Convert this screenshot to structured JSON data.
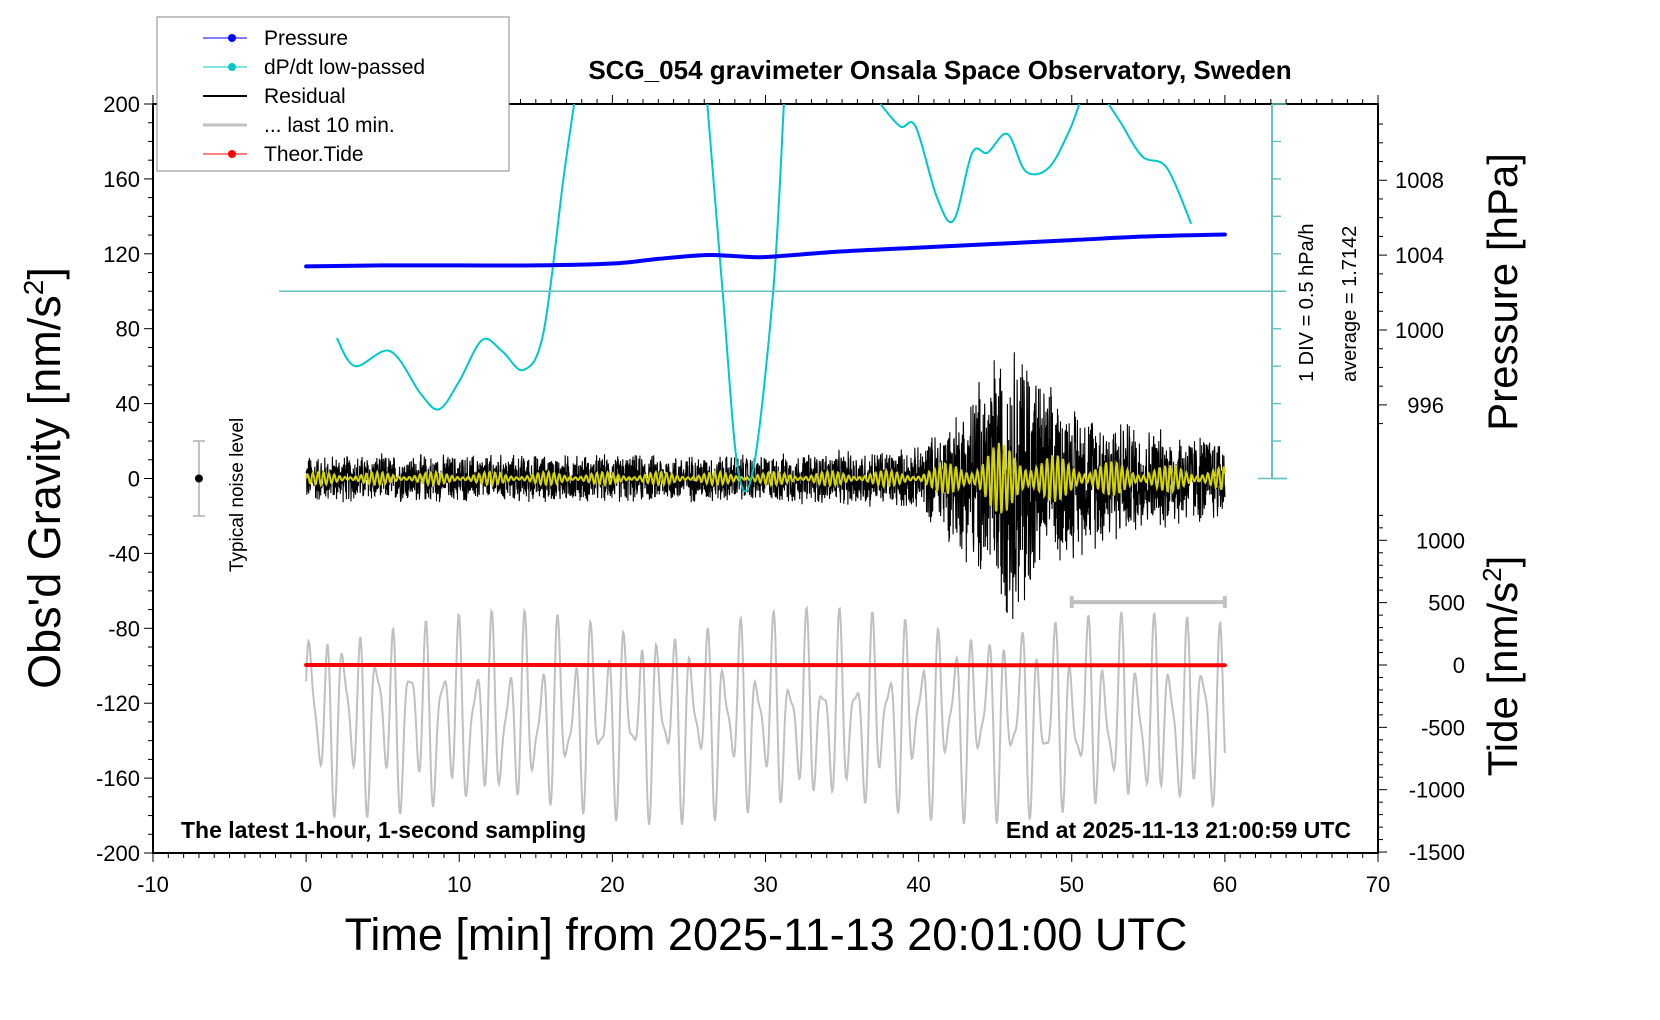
{
  "chart_data": {
    "type": "line",
    "title": "SCG_054 gravimeter Onsala Space Observatory, Sweden",
    "xlabel": "Time [min] from 2025-11-13 20:01:00 UTC",
    "ylabel_left": "Obs'd Gravity [nm/s",
    "ylabel_left_sup": "2",
    "ylabel_left_end": "]",
    "ylabel_right_pressure": "Pressure [hPa]",
    "ylabel_right_tide": "Tide [nm/s",
    "ylabel_right_tide_sup": "2",
    "ylabel_right_tide_end": "]",
    "xlim": [
      -10,
      70
    ],
    "ylim_left": [
      -200,
      200
    ],
    "x_ticks": [
      "-10",
      "0",
      "10",
      "20",
      "30",
      "40",
      "50",
      "60",
      "70"
    ],
    "x_tick_values": [
      -10,
      0,
      10,
      20,
      30,
      40,
      50,
      60,
      70
    ],
    "y_left_ticks": [
      "200",
      "160",
      "120",
      "80",
      "40",
      "0",
      "-40",
      "-80",
      "-120",
      "-160",
      "-200"
    ],
    "y_left_tick_values": [
      200,
      160,
      120,
      80,
      40,
      0,
      -40,
      -80,
      -120,
      -160,
      -200
    ],
    "y_pressure_ticks": [
      "1008",
      "1004",
      "1000",
      "996"
    ],
    "y_pressure_tick_values": [
      1008,
      1004,
      1000,
      996
    ],
    "y_tide_ticks": [
      "1000",
      "500",
      "0",
      "-500",
      "-1000",
      "-1500"
    ],
    "y_tide_tick_values": [
      1000,
      500,
      0,
      -500,
      -1000,
      -1500
    ],
    "annotations": {
      "bottom_left": "The latest 1-hour, 1-second sampling",
      "bottom_right": "End at 2025-11-13 21:00:59 UTC",
      "dpdt_scale": "1 DIV = 0.5 hPa/h",
      "dpdt_average": "average = 1.7142",
      "noise_label": "Typical noise level"
    },
    "noise_bar": {
      "x": -7,
      "center": 0,
      "low": -20,
      "high": 20
    },
    "last10_bar": {
      "x_start": 50,
      "x_end": 60,
      "gravity_level": -66
    },
    "legend": {
      "position": "top-left",
      "entries": [
        {
          "label": "Pressure",
          "color": "#0000ff",
          "marker": "dot"
        },
        {
          "label": "dP/dt low-passed",
          "color": "#00c8c8",
          "marker": "dot"
        },
        {
          "label": "Residual",
          "color": "#000000",
          "marker": "line"
        },
        {
          "label": "... last 10 min.",
          "color": "#c0c0c0",
          "marker": "line"
        },
        {
          "label": "Theor.Tide",
          "color": "#ff0000",
          "marker": "dot"
        }
      ]
    },
    "series": [
      {
        "name": "Pressure",
        "axis": "pressure_hPa",
        "color": "#0000ff",
        "x": [
          0,
          5,
          10,
          15,
          20,
          23,
          26,
          28,
          30,
          35,
          40,
          45,
          50,
          55,
          60
        ],
        "values": [
          1003.4,
          1003.45,
          1003.45,
          1003.45,
          1003.55,
          1003.8,
          1004.0,
          1003.95,
          1003.9,
          1004.2,
          1004.4,
          1004.6,
          1004.8,
          1005.0,
          1005.1
        ]
      },
      {
        "name": "dP/dt low-passed",
        "axis": "dpdt_div",
        "color": "#00c8c8",
        "baseline_gravity_level": 100,
        "x": [
          2,
          3.2,
          5.5,
          7.5,
          8.7,
          10,
          11.5,
          12.8,
          14.2,
          15.5,
          16.8,
          17.5,
          26.2,
          27.2,
          28.2,
          29.2,
          30.5,
          31.2,
          37.5,
          38.8,
          39.8,
          41.2,
          42.3,
          43.5,
          44.5,
          45.8,
          47,
          48.5,
          49.8,
          50.5,
          52.4,
          53.2,
          54.6,
          56.2,
          57.8
        ],
        "values": [
          7.5,
          6.0,
          6.8,
          4.5,
          3.7,
          5.2,
          7.4,
          6.8,
          5.8,
          7.8,
          16.0,
          20.0,
          20.0,
          10.0,
          0.5,
          0.5,
          10.0,
          20.0,
          20.0,
          18.8,
          18.8,
          15.0,
          13.8,
          17.4,
          17.4,
          18.4,
          16.4,
          16.6,
          18.5,
          20.0,
          20.0,
          19.0,
          17.2,
          16.6,
          13.6
        ]
      },
      {
        "name": "Residual",
        "axis": "gravity",
        "color": "#000000",
        "description_envelope_x": [
          0,
          10,
          20,
          30,
          40,
          43,
          45,
          46,
          47,
          48,
          50,
          55,
          60
        ],
        "envelope_amplitude": [
          14,
          14,
          14,
          14,
          18,
          45,
          75,
          80,
          85,
          55,
          45,
          30,
          25
        ]
      },
      {
        "name": "... last 10 min.",
        "axis": "tide_display",
        "color": "#c0c0c0",
        "x_range": [
          0,
          60
        ],
        "amplitude_gravity_units": 45,
        "center_gravity_level": -127
      },
      {
        "name": "Theor.Tide",
        "axis": "tide_nm_s2",
        "color": "#ff0000",
        "x": [
          0,
          60
        ],
        "values": [
          0,
          -2
        ]
      }
    ],
    "filtered_residual_color": "#d4d400"
  }
}
